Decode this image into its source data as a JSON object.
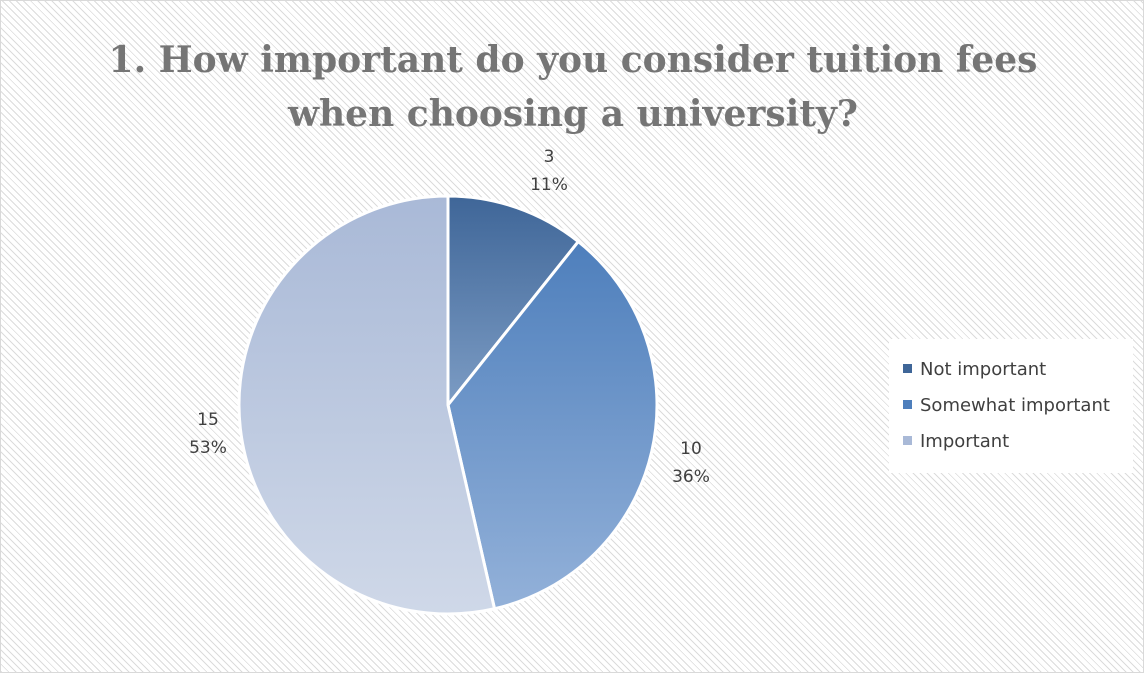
{
  "chart_data": {
    "type": "pie",
    "title": [
      "1. How important do you consider tuition fees",
      "when choosing a university?"
    ],
    "categories": [
      "Not important",
      "Somewhat important",
      "Important"
    ],
    "values": [
      3,
      10,
      15
    ],
    "percent_labels": [
      "11%",
      "36%",
      "53%"
    ],
    "colors": [
      "#3f6698",
      "#4e7fbc",
      "#a9b9d7"
    ],
    "gradient_light": [
      "#7c9cc4",
      "#93b1d9",
      "#cfd8e8"
    ],
    "legend_position": "right"
  }
}
